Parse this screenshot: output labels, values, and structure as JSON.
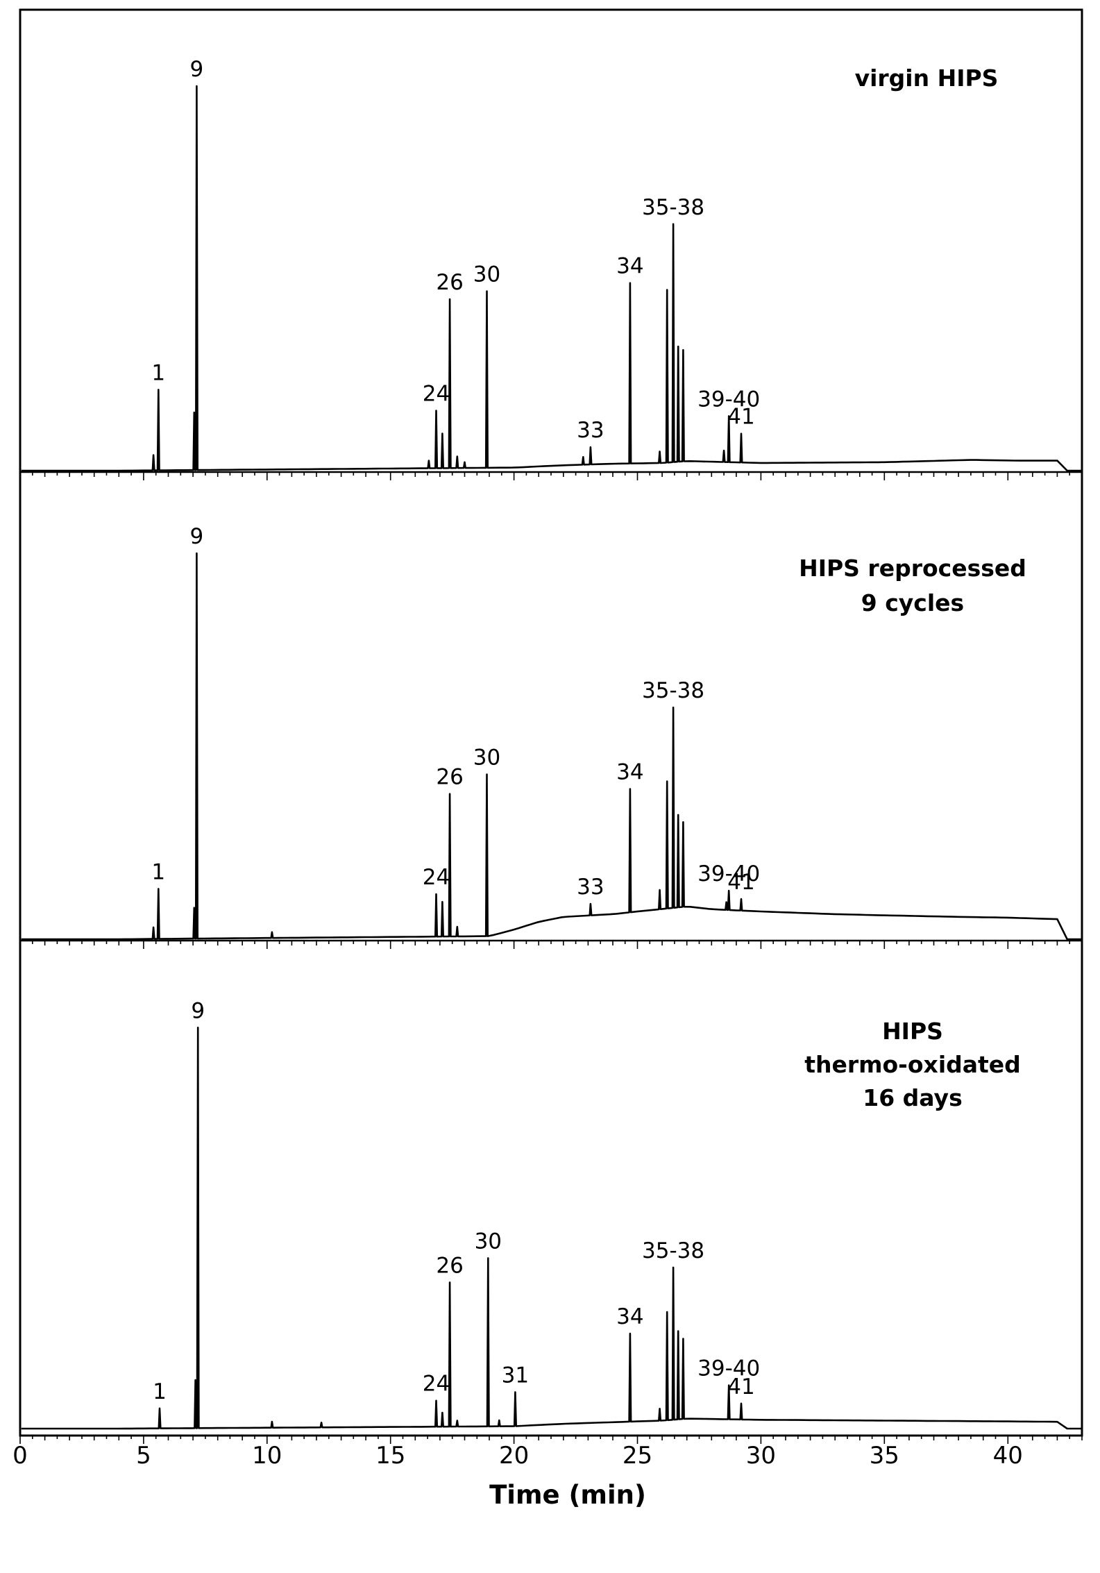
{
  "chart_data": {
    "type": "line",
    "xlabel": "Time (min)",
    "xlim": [
      0,
      43
    ],
    "x_ticks": [
      0,
      5,
      10,
      15,
      20,
      25,
      30,
      35,
      40
    ],
    "grid": false,
    "legend": "none",
    "panels": [
      {
        "id": "virgin",
        "title_lines": [
          "virgin HIPS"
        ],
        "baseline": [
          [
            4.0,
            0
          ],
          [
            20.0,
            0.008
          ],
          [
            22.0,
            0.014
          ],
          [
            24.0,
            0.018
          ],
          [
            26.0,
            0.02
          ],
          [
            27.0,
            0.025
          ],
          [
            30.0,
            0.02
          ],
          [
            35.0,
            0.022
          ],
          [
            38.5,
            0.028
          ],
          [
            40.5,
            0.026
          ],
          [
            42.0,
            0.026
          ]
        ],
        "peaks": [
          {
            "label": "1",
            "x": 5.6,
            "h": 0.21
          },
          {
            "label": "9",
            "x": 7.15,
            "h": 1.0
          },
          {
            "label": "24",
            "x": 16.85,
            "h": 0.15
          },
          {
            "label": "26",
            "x": 17.4,
            "h": 0.44
          },
          {
            "label": "30",
            "x": 18.9,
            "h": 0.46
          },
          {
            "label": "33",
            "x": 23.1,
            "h": 0.045
          },
          {
            "label": "34",
            "x": 24.7,
            "h": 0.47
          },
          {
            "label": "35-38",
            "x": 26.45,
            "h": 0.62
          },
          {
            "label": "39-40",
            "x": 28.7,
            "h": 0.12
          },
          {
            "label": "41",
            "x": 29.2,
            "h": 0.075
          }
        ],
        "minor_peaks": [
          {
            "x": 5.4,
            "h": 0.04
          },
          {
            "x": 7.05,
            "h": 0.15
          },
          {
            "x": 16.55,
            "h": 0.02
          },
          {
            "x": 17.1,
            "h": 0.09
          },
          {
            "x": 17.7,
            "h": 0.03
          },
          {
            "x": 18.0,
            "h": 0.015
          },
          {
            "x": 22.8,
            "h": 0.02
          },
          {
            "x": 25.9,
            "h": 0.03
          },
          {
            "x": 26.2,
            "h": 0.45
          },
          {
            "x": 26.65,
            "h": 0.3
          },
          {
            "x": 26.85,
            "h": 0.29
          },
          {
            "x": 28.5,
            "h": 0.03
          }
        ]
      },
      {
        "id": "reprocessed",
        "title_lines": [
          "HIPS reprocessed",
          "9 cycles"
        ],
        "baseline": [
          [
            4.0,
            0
          ],
          [
            19.0,
            0.008
          ],
          [
            20.0,
            0.025
          ],
          [
            21.0,
            0.045
          ],
          [
            22.0,
            0.058
          ],
          [
            24.0,
            0.065
          ],
          [
            25.0,
            0.072
          ],
          [
            27.0,
            0.085
          ],
          [
            28.0,
            0.078
          ],
          [
            30.0,
            0.072
          ],
          [
            33.0,
            0.065
          ],
          [
            35.0,
            0.062
          ],
          [
            38.0,
            0.058
          ],
          [
            40.0,
            0.056
          ],
          [
            42.0,
            0.052
          ]
        ],
        "peaks": [
          {
            "label": "1",
            "x": 5.6,
            "h": 0.13
          },
          {
            "label": "9",
            "x": 7.15,
            "h": 1.0
          },
          {
            "label": "24",
            "x": 16.85,
            "h": 0.11
          },
          {
            "label": "26",
            "x": 17.4,
            "h": 0.37
          },
          {
            "label": "30",
            "x": 18.9,
            "h": 0.42
          },
          {
            "label": "33",
            "x": 23.1,
            "h": 0.03
          },
          {
            "label": "34",
            "x": 24.7,
            "h": 0.32
          },
          {
            "label": "35-38",
            "x": 26.45,
            "h": 0.52
          },
          {
            "label": "39-40",
            "x": 28.7,
            "h": 0.05
          },
          {
            "label": "41",
            "x": 29.2,
            "h": 0.03
          }
        ],
        "minor_peaks": [
          {
            "x": 5.4,
            "h": 0.03
          },
          {
            "x": 7.05,
            "h": 0.08
          },
          {
            "x": 10.2,
            "h": 0.015
          },
          {
            "x": 17.1,
            "h": 0.09
          },
          {
            "x": 17.7,
            "h": 0.025
          },
          {
            "x": 25.9,
            "h": 0.05
          },
          {
            "x": 26.2,
            "h": 0.33
          },
          {
            "x": 26.65,
            "h": 0.24
          },
          {
            "x": 26.85,
            "h": 0.22
          },
          {
            "x": 28.6,
            "h": 0.02
          }
        ]
      },
      {
        "id": "thermo",
        "title_lines": [
          "HIPS",
          "thermo-oxidated",
          "16 days"
        ],
        "baseline": [
          [
            4.0,
            0
          ],
          [
            20.0,
            0.006
          ],
          [
            22.0,
            0.012
          ],
          [
            24.0,
            0.016
          ],
          [
            26.0,
            0.02
          ],
          [
            27.0,
            0.025
          ],
          [
            30.0,
            0.022
          ],
          [
            35.0,
            0.02
          ],
          [
            40.0,
            0.018
          ],
          [
            42.0,
            0.017
          ]
        ],
        "peaks": [
          {
            "label": "1",
            "x": 5.65,
            "h": 0.05
          },
          {
            "label": "9",
            "x": 7.2,
            "h": 1.0
          },
          {
            "label": "24",
            "x": 16.85,
            "h": 0.065
          },
          {
            "label": "26",
            "x": 17.4,
            "h": 0.36
          },
          {
            "label": "30",
            "x": 18.95,
            "h": 0.42
          },
          {
            "label": "31",
            "x": 20.05,
            "h": 0.085
          },
          {
            "label": "34",
            "x": 24.7,
            "h": 0.22
          },
          {
            "label": "35-38",
            "x": 26.45,
            "h": 0.38
          },
          {
            "label": "39-40",
            "x": 28.7,
            "h": 0.085
          },
          {
            "label": "41",
            "x": 29.2,
            "h": 0.04
          }
        ],
        "minor_peaks": [
          {
            "x": 7.1,
            "h": 0.12
          },
          {
            "x": 10.2,
            "h": 0.015
          },
          {
            "x": 12.2,
            "h": 0.012
          },
          {
            "x": 17.1,
            "h": 0.035
          },
          {
            "x": 17.7,
            "h": 0.015
          },
          {
            "x": 19.4,
            "h": 0.015
          },
          {
            "x": 25.9,
            "h": 0.03
          },
          {
            "x": 26.2,
            "h": 0.27
          },
          {
            "x": 26.65,
            "h": 0.22
          },
          {
            "x": 26.85,
            "h": 0.2
          }
        ]
      }
    ]
  }
}
